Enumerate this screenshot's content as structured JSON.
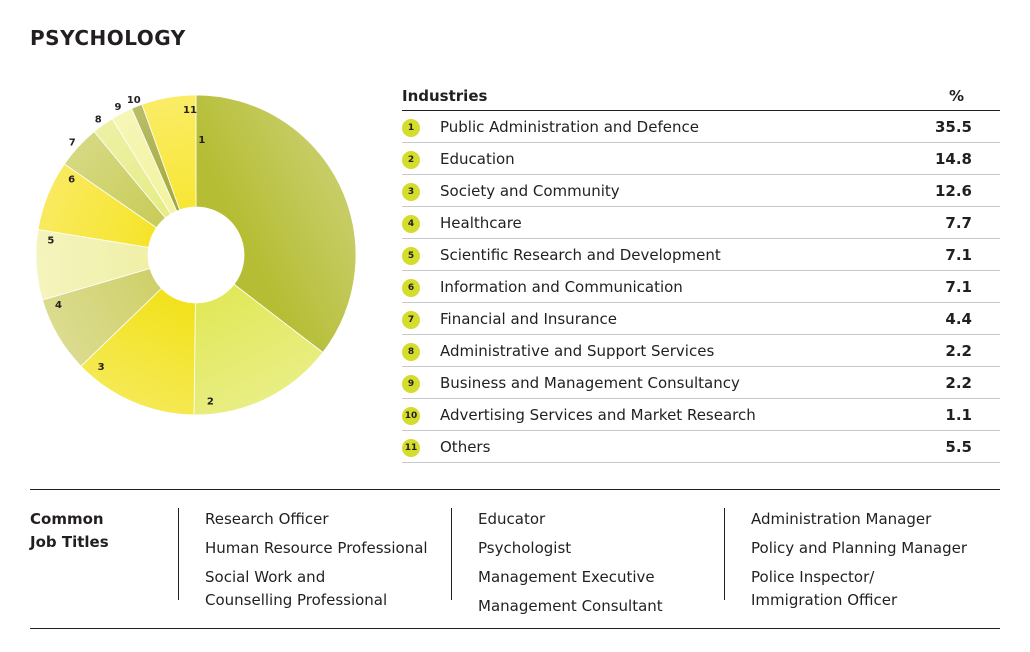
{
  "title": "PSYCHOLOGY",
  "chart_data": {
    "type": "pie",
    "subtype": "donut",
    "slice_labels": [
      "1",
      "2",
      "3",
      "4",
      "5",
      "6",
      "7",
      "8",
      "9",
      "10",
      "11"
    ],
    "values": [
      35.5,
      14.8,
      12.6,
      7.7,
      7.1,
      7.1,
      4.4,
      2.2,
      2.2,
      1.1,
      5.5
    ],
    "colors": [
      "#b5bd34",
      "#e1e85a",
      "#f2e21c",
      "#cfd06a",
      "#f0f0a8",
      "#f6e42a",
      "#c8cc58",
      "#e6ec86",
      "#f3f3a0",
      "#a3a838",
      "#f8e634"
    ]
  },
  "table": {
    "header_industry": "Industries",
    "header_pct": "%",
    "rows": [
      {
        "num": "1",
        "industry": "Public Administration and Defence",
        "pct": "35.5"
      },
      {
        "num": "2",
        "industry": "Education",
        "pct": "14.8"
      },
      {
        "num": "3",
        "industry": "Society and Community",
        "pct": "12.6"
      },
      {
        "num": "4",
        "industry": "Healthcare",
        "pct": "7.7"
      },
      {
        "num": "5",
        "industry": "Scientific Research and Development",
        "pct": "7.1"
      },
      {
        "num": "6",
        "industry": "Information and Communication",
        "pct": "7.1"
      },
      {
        "num": "7",
        "industry": "Financial and Insurance",
        "pct": "4.4"
      },
      {
        "num": "8",
        "industry": "Administrative and Support Services",
        "pct": "2.2"
      },
      {
        "num": "9",
        "industry": "Business and Management Consultancy",
        "pct": "2.2"
      },
      {
        "num": "10",
        "industry": "Advertising Services and Market Research",
        "pct": "1.1"
      },
      {
        "num": "11",
        "industry": "Others",
        "pct": "5.5"
      }
    ]
  },
  "jobs": {
    "heading": "Common\nJob Titles",
    "col1": [
      "Research Officer",
      "Human Resource Professional",
      "Social Work and\nCounselling Professional"
    ],
    "col2": [
      "Educator",
      "Psychologist",
      "Management Executive",
      "Management Consultant"
    ],
    "col3": [
      "Administration Manager",
      "Policy and Planning Manager",
      "Police Inspector/\nImmigration Officer"
    ]
  }
}
